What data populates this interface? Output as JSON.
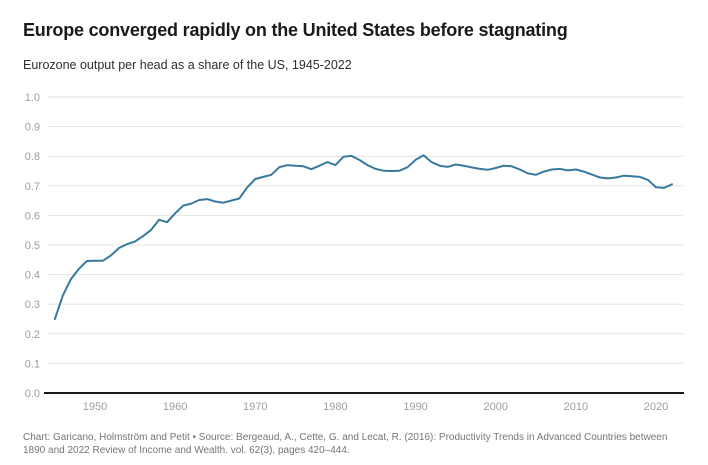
{
  "header": {
    "title": "Europe converged rapidly on the United States before stagnating",
    "subtitle": "Eurozone output per head as a share of the US, 1945-2022"
  },
  "footer": {
    "text": "Chart: Garicano, Holmström and Petit • Source: Bergeaud, A., Cette, G. and Lecat, R. (2016): Productivity Trends in Advanced Countries between 1890 and 2022 Review of Income and Wealth. vol. 62(3), pages 420–444."
  },
  "colors": {
    "line": "#38799f",
    "grid": "#e4e4e4",
    "axis_text": "#9e9e9e",
    "baseline": "#1a1a1a",
    "title_text": "#1a1a1a",
    "subtitle_text": "#2e2e2e",
    "footer_text": "#757575"
  },
  "chart_data": {
    "type": "line",
    "title": "Europe converged rapidly on the United States before stagnating",
    "subtitle": "Eurozone output per head as a share of the US, 1945-2022",
    "xlabel": "",
    "ylabel": "",
    "ylim": [
      0.0,
      1.0
    ],
    "y_ticks": [
      0.0,
      0.1,
      0.2,
      0.3,
      0.4,
      0.5,
      0.6,
      0.7,
      0.8,
      0.9,
      1.0
    ],
    "x_ticks": [
      1950,
      1960,
      1970,
      1980,
      1990,
      2000,
      2010,
      2020
    ],
    "grid": "horizontal",
    "legend": "none",
    "x_start": 1945,
    "x_end": 2022,
    "series": [
      {
        "name": "Eurozone output per head as a share of the US",
        "values": [
          0.25,
          0.33,
          0.385,
          0.42,
          0.446,
          0.447,
          0.447,
          0.465,
          0.49,
          0.503,
          0.512,
          0.53,
          0.551,
          0.585,
          0.577,
          0.607,
          0.633,
          0.64,
          0.652,
          0.655,
          0.647,
          0.643,
          0.65,
          0.657,
          0.695,
          0.723,
          0.73,
          0.737,
          0.763,
          0.77,
          0.768,
          0.766,
          0.756,
          0.768,
          0.78,
          0.77,
          0.798,
          0.801,
          0.787,
          0.77,
          0.757,
          0.751,
          0.75,
          0.751,
          0.763,
          0.788,
          0.803,
          0.78,
          0.768,
          0.764,
          0.772,
          0.768,
          0.762,
          0.757,
          0.754,
          0.76,
          0.768,
          0.766,
          0.755,
          0.742,
          0.737,
          0.748,
          0.755,
          0.757,
          0.752,
          0.755,
          0.748,
          0.738,
          0.728,
          0.725,
          0.728,
          0.734,
          0.732,
          0.73,
          0.72,
          0.695,
          0.693,
          0.705
        ]
      }
    ]
  }
}
